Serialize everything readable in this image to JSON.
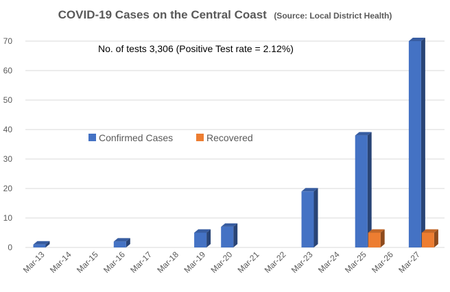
{
  "chart_data": {
    "type": "bar",
    "title": "COVID-19 Cases on the Central Coast",
    "subtitle": "(Source: Local District Health)",
    "annotation": "No. of tests 3,306  (Positive Test rate = 2.12%)",
    "categories": [
      "Mar-13",
      "Mar-14",
      "Mar-15",
      "Mar-16",
      "Mar-17",
      "Mar-18",
      "Mar-19",
      "Mar-20",
      "Mar-21",
      "Mar-22",
      "Mar-23",
      "Mar-24",
      "Mar-25",
      "Mar-26",
      "Mar-27"
    ],
    "series": [
      {
        "name": "Confirmed Cases",
        "color": "#4472c4",
        "values": [
          1,
          null,
          null,
          2,
          null,
          null,
          5,
          7,
          null,
          null,
          19,
          null,
          38,
          null,
          70
        ]
      },
      {
        "name": "Recovered",
        "color": "#ed7d31",
        "values": [
          null,
          null,
          null,
          null,
          null,
          null,
          null,
          null,
          null,
          null,
          null,
          null,
          5,
          null,
          5
        ]
      }
    ],
    "ylim": [
      0,
      70
    ],
    "yticks": [
      0,
      10,
      20,
      30,
      40,
      50,
      60,
      70
    ],
    "grid": true,
    "legend_position": "middle-left",
    "style": "3d-column"
  }
}
